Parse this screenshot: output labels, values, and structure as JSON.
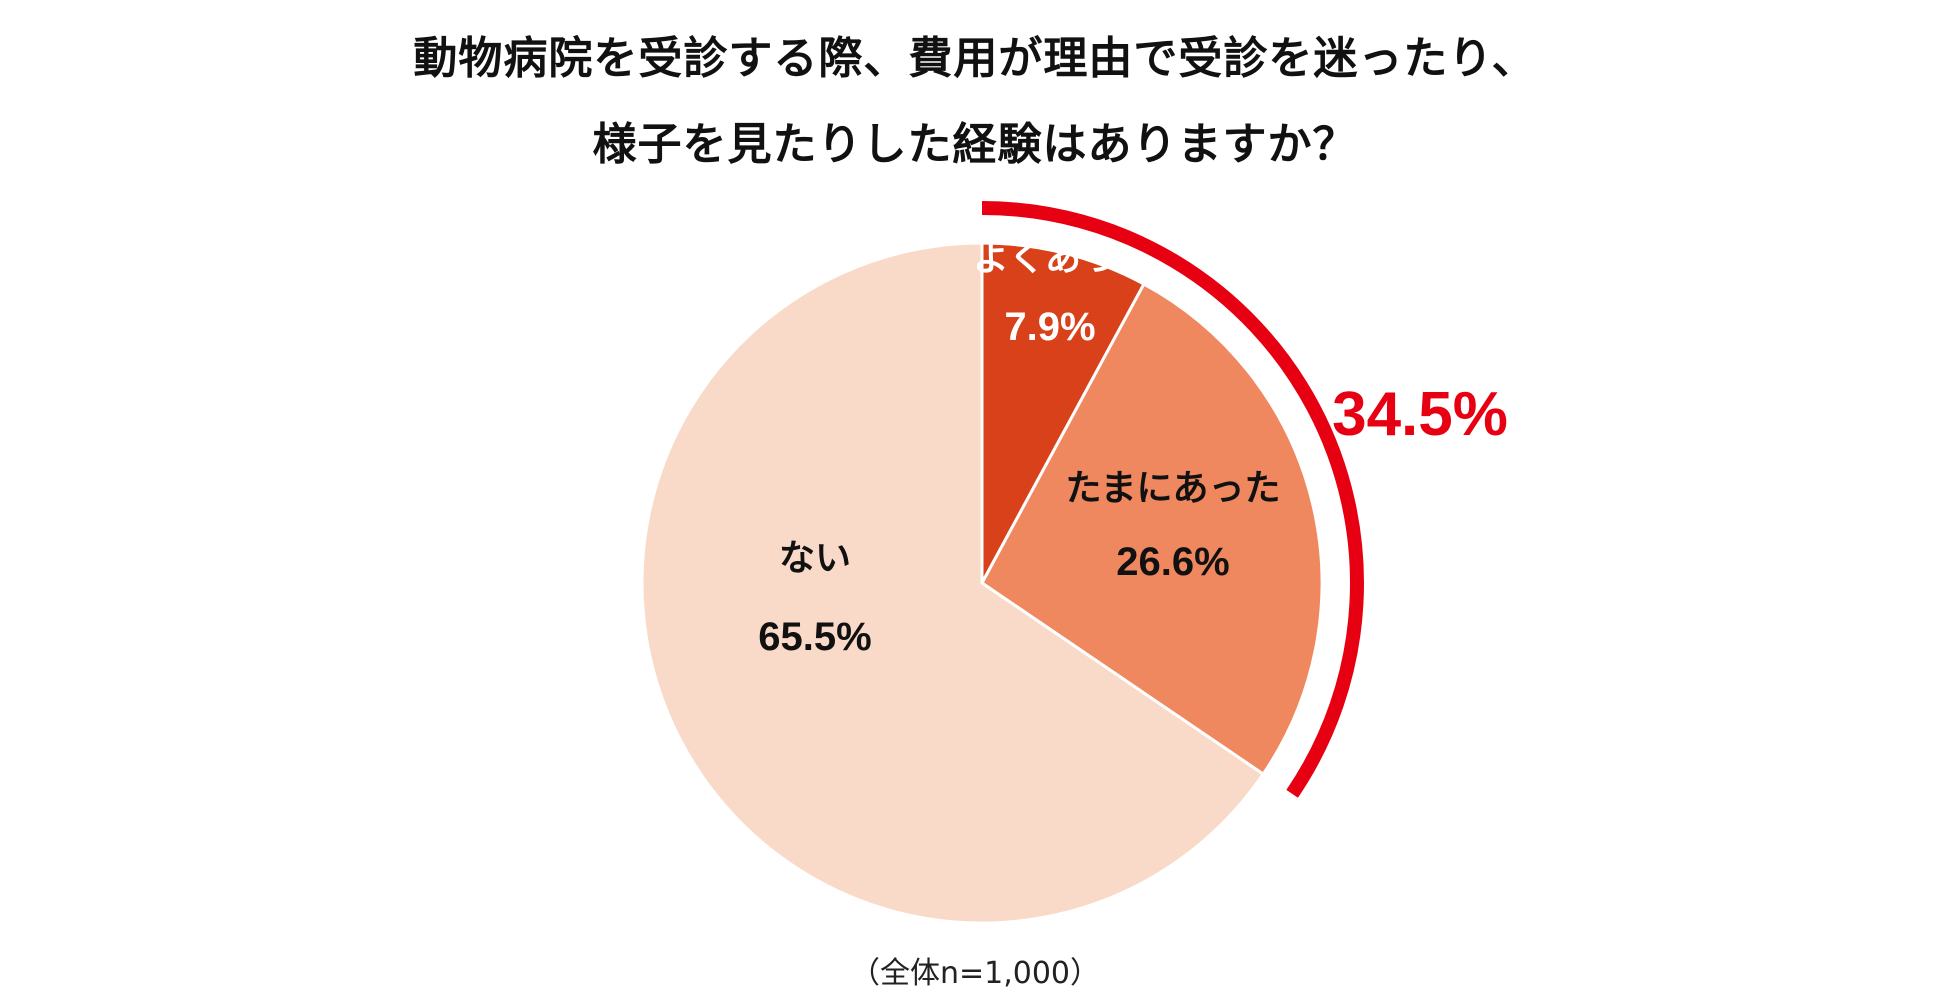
{
  "title_line1": "動物病院を受診する際、費用が理由で受診を迷ったり、",
  "title_line2": "様子を見たりした経験はありますか？",
  "note": "（全体n=1,000）",
  "highlight_total": "34.5%",
  "colors": {
    "accent": "#e60012"
  },
  "chart_data": {
    "type": "pie",
    "title": "動物病院を受診する際、費用が理由で受診を迷ったり、様子を見たりした経験はありますか？",
    "slices": [
      {
        "label": "よくあった",
        "value": 7.9,
        "value_label": "7.9%",
        "color": "#d9411a",
        "text_color": "#ffffff"
      },
      {
        "label": "たまにあった",
        "value": 26.6,
        "value_label": "26.6%",
        "color": "#f0885f",
        "text_color": "#111111"
      },
      {
        "label": "ない",
        "value": 65.5,
        "value_label": "65.5%",
        "color": "#f9d9c8",
        "text_color": "#111111"
      }
    ],
    "annotation": {
      "text": "34.5%",
      "covers": [
        "よくあった",
        "たまにあった"
      ]
    },
    "start_angle": "12 o'clock",
    "direction": "clockwise"
  }
}
